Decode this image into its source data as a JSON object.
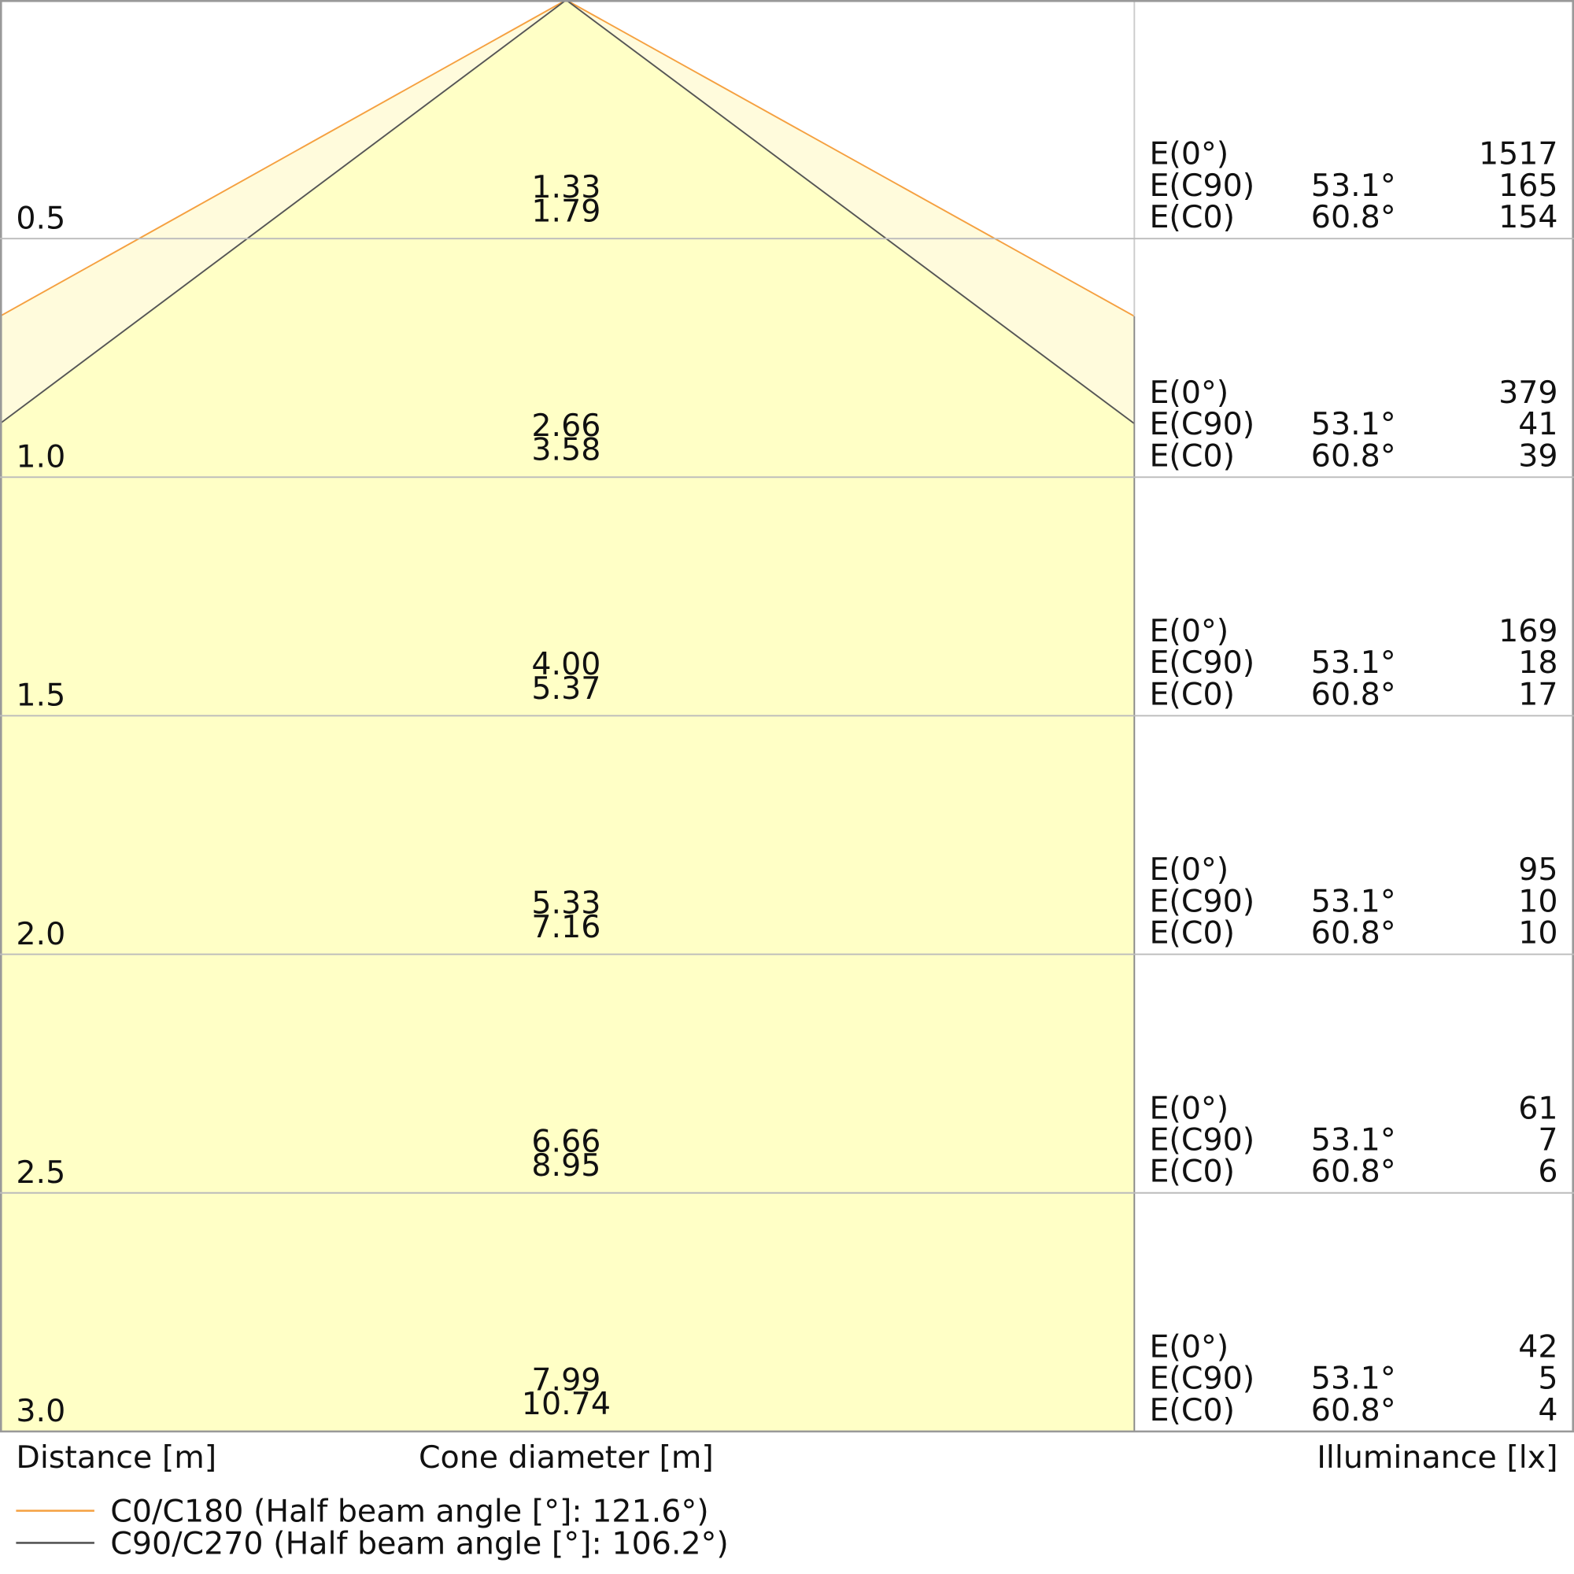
{
  "rows": [
    {
      "distance": "0.5",
      "diameters": [
        "1.33",
        "1.79"
      ],
      "illuminance": [
        {
          "label": "E(0°)",
          "value": "1517"
        },
        {
          "label": "E(C90)",
          "angle": "53.1°",
          "value": "165"
        },
        {
          "label": "E(C0)",
          "angle": "60.8°",
          "value": "154"
        }
      ]
    },
    {
      "distance": "1.0",
      "diameters": [
        "2.66",
        "3.58"
      ],
      "illuminance": [
        {
          "label": "E(0°)",
          "value": "379"
        },
        {
          "label": "E(C90)",
          "angle": "53.1°",
          "value": "41"
        },
        {
          "label": "E(C0)",
          "angle": "60.8°",
          "value": "39"
        }
      ]
    },
    {
      "distance": "1.5",
      "diameters": [
        "4.00",
        "5.37"
      ],
      "illuminance": [
        {
          "label": "E(0°)",
          "value": "169"
        },
        {
          "label": "E(C90)",
          "angle": "53.1°",
          "value": "18"
        },
        {
          "label": "E(C0)",
          "angle": "60.8°",
          "value": "17"
        }
      ]
    },
    {
      "distance": "2.0",
      "diameters": [
        "5.33",
        "7.16"
      ],
      "illuminance": [
        {
          "label": "E(0°)",
          "value": "95"
        },
        {
          "label": "E(C90)",
          "angle": "53.1°",
          "value": "10"
        },
        {
          "label": "E(C0)",
          "angle": "60.8°",
          "value": "10"
        }
      ]
    },
    {
      "distance": "2.5",
      "diameters": [
        "6.66",
        "8.95"
      ],
      "illuminance": [
        {
          "label": "E(0°)",
          "value": "61"
        },
        {
          "label": "E(C90)",
          "angle": "53.1°",
          "value": "7"
        },
        {
          "label": "E(C0)",
          "angle": "60.8°",
          "value": "6"
        }
      ]
    },
    {
      "distance": "3.0",
      "diameters": [
        "7.99",
        "10.74"
      ],
      "illuminance": [
        {
          "label": "E(0°)",
          "value": "42"
        },
        {
          "label": "E(C90)",
          "angle": "53.1°",
          "value": "5"
        },
        {
          "label": "E(C0)",
          "angle": "60.8°",
          "value": "4"
        }
      ]
    }
  ],
  "axis_labels": {
    "distance": "Distance [m]",
    "diameter": "Cone diameter [m]",
    "illuminance": "Illuminance [lx]"
  },
  "legend": [
    {
      "label": "C0/C180 (Half beam angle [°]: 121.6°)",
      "color": "#f5a040"
    },
    {
      "label": "C90/C270 (Half beam angle [°]: 106.2°)",
      "color": "#555555"
    }
  ]
}
